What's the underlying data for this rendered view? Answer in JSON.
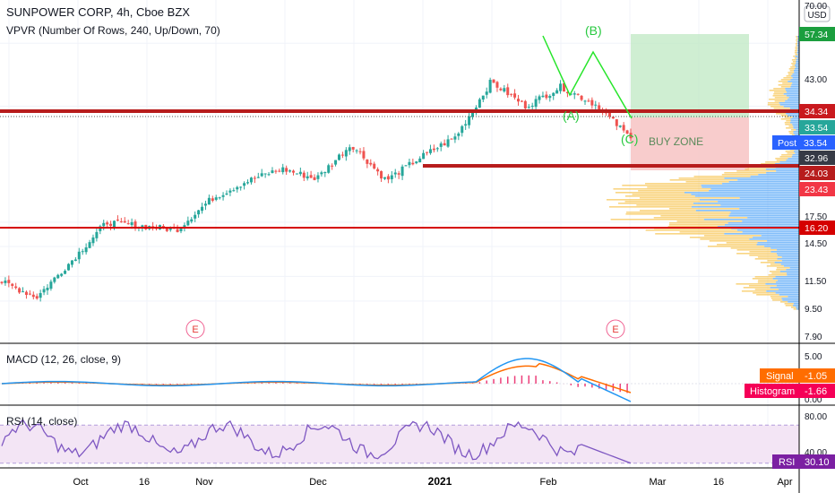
{
  "header": {
    "title": "SUNPOWER CORP, 4h, Cboe BZX",
    "indicator": "VPVR (Number Of Rows, 240, Up/Down, 70)",
    "currency": "USD"
  },
  "price_axis": {
    "ticks": [
      "70.00",
      "57.34",
      "43.00",
      "34.34",
      "33.54",
      "32.96",
      "24.03",
      "23.43",
      "17.50",
      "16.20",
      "14.50",
      "11.50",
      "9.50",
      "7.90"
    ],
    "plain_ticks": [
      "70.00",
      "43.00",
      "17.50",
      "14.50",
      "11.50",
      "9.50",
      "7.90"
    ]
  },
  "price_tags": [
    {
      "text": "57.34",
      "bg": "#1b9e3e",
      "fg": "#ffffff"
    },
    {
      "text": "34.34",
      "bg": "#c9191e",
      "fg": "#ffffff"
    },
    {
      "text": "33.54",
      "bg": "#26a69a",
      "fg": "#ffffff"
    },
    {
      "text": "Post",
      "text2": "33.54",
      "bg": "#2962ff",
      "fg": "#ffffff"
    },
    {
      "text": "32.96",
      "bg": "#363a45",
      "fg": "#ffffff"
    },
    {
      "text": "24.03",
      "bg": "#b71c1c",
      "fg": "#ffffff"
    },
    {
      "text": "23.43",
      "bg": "#f23645",
      "fg": "#ffffff"
    },
    {
      "text": "16.20",
      "bg": "#d50000",
      "fg": "#ffffff"
    }
  ],
  "annotations": {
    "wave_a": "(A)",
    "wave_b": "(B)",
    "wave_c": "(C)",
    "buy_zone": "BUY ZONE",
    "earnings": "E"
  },
  "macd": {
    "title": "MACD (12, 26, close, 9)",
    "ticks": [
      "5.00",
      "0.00"
    ],
    "signal_label": "Signal",
    "signal_value": "-1.05",
    "histogram_label": "Histogram",
    "histogram_value": "-1.66"
  },
  "rsi": {
    "title": "RSI (14, close)",
    "ticks": [
      "80.00",
      "40.00"
    ],
    "label": "RSI",
    "value": "30.10"
  },
  "time_axis": [
    "Oct",
    "16",
    "Nov",
    "Dec",
    "2021",
    "Feb",
    "Mar",
    "16",
    "Apr"
  ],
  "chart_data": {
    "type": "candlestick",
    "symbol": "SUNPOWER CORP",
    "interval": "4h",
    "y_scale": "log",
    "ylim": [
      7.9,
      70
    ],
    "approx_close_path": [
      {
        "t": "late Sep",
        "close": 11.0
      },
      {
        "t": "early Oct",
        "close": 9.8
      },
      {
        "t": "mid Oct",
        "close": 13.0
      },
      {
        "t": "16",
        "close": 17.5
      },
      {
        "t": "late Oct",
        "close": 17.0
      },
      {
        "t": "Nov",
        "close": 16.5
      },
      {
        "t": "mid Nov",
        "close": 21.0
      },
      {
        "t": "late Nov",
        "close": 24.0
      },
      {
        "t": "Dec",
        "close": 26.5
      },
      {
        "t": "mid Dec",
        "close": 24.5
      },
      {
        "t": "late Dec",
        "close": 32.0
      },
      {
        "t": "end Dec",
        "close": 24.2
      },
      {
        "t": "2021",
        "close": 29.0
      },
      {
        "t": "mid Jan",
        "close": 34.0
      },
      {
        "t": "late Jan",
        "close": 52.0
      },
      {
        "t": "early Feb",
        "close": 43.0
      },
      {
        "t": "Feb",
        "close": 50.0
      },
      {
        "t": "mid Feb",
        "close": 43.5
      },
      {
        "t": "late Feb",
        "close": 33.54
      }
    ],
    "levels": [
      {
        "price": 34.34,
        "color": "#b71c1c"
      },
      {
        "price": 24.03,
        "color": "#b71c1c"
      },
      {
        "price": 16.2,
        "color": "#d50000"
      }
    ],
    "position_box": {
      "entry": 33.54,
      "target": 57.34,
      "stop": 23.43
    },
    "last_price": 33.54,
    "macd_last": {
      "signal": -1.05,
      "histogram": -1.66
    },
    "rsi_last": 30.1
  },
  "colors": {
    "up": "#26a69a",
    "down": "#ef5350",
    "level": "#b71c1c",
    "wave": "#27e52b",
    "macd_line": "#2196f3",
    "signal_line": "#ff6d00",
    "rsi_line": "#7e57c2",
    "vp_up": "#4fa3f7",
    "vp_down": "#f7c34f"
  }
}
